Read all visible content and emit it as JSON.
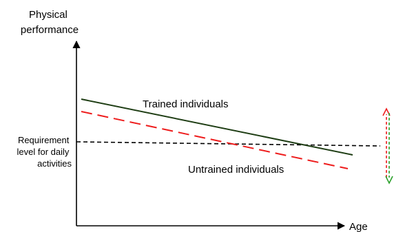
{
  "axes": {
    "y_label_lines": [
      "Physical",
      "performance"
    ],
    "x_label": "Age"
  },
  "requirement": {
    "label_lines": [
      "Requirement",
      "level for daily",
      "activities"
    ]
  },
  "series": {
    "trained": {
      "label": "Trained individuals",
      "color": "#1e3d14",
      "style": "solid"
    },
    "untrained": {
      "label": "Untrained individuals",
      "color": "#ee1c1c",
      "style": "dashed"
    }
  },
  "arrows": {
    "up_color": "#ee1c1c",
    "down_color": "#2aa02a"
  }
}
